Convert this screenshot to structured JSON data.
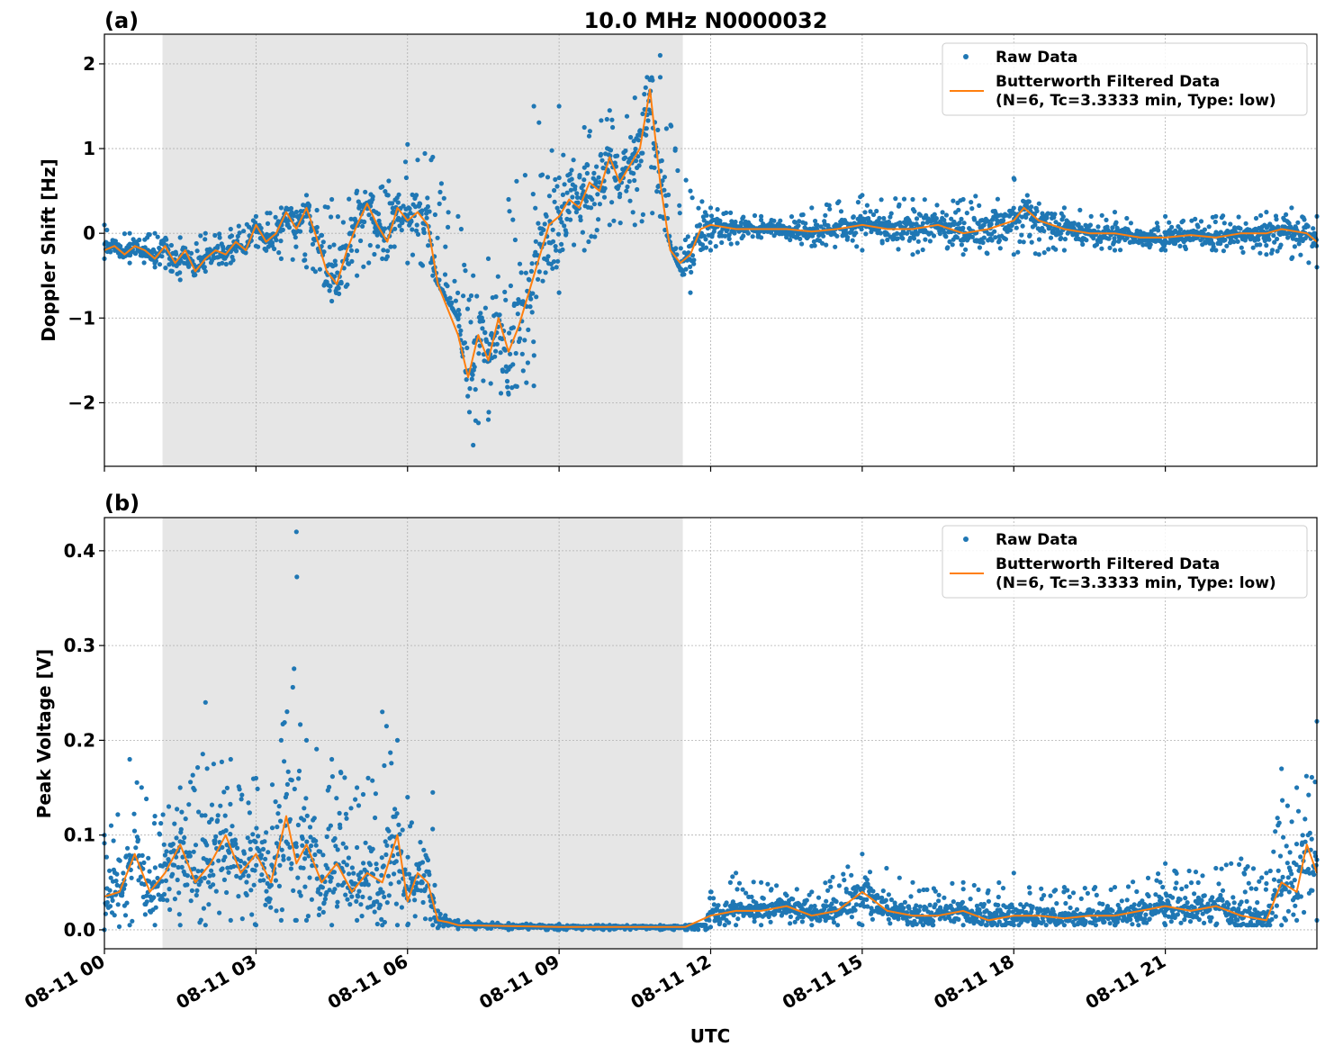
{
  "figure": {
    "title": "10.0 MHz N0000032",
    "xlabel": "UTC"
  },
  "colors": {
    "raw": "#1f77b4",
    "filtered": "#ff7f0e",
    "night_shade": "#e6e6e6",
    "grid": "#b0b0b0"
  },
  "legend": {
    "raw": "Raw Data",
    "filtered_line1": "Butterworth Filtered Data",
    "filtered_line2": "(N=6, Tc=3.3333 min, Type: low)"
  },
  "chart_data": [
    {
      "panel": "(a)",
      "type": "scatter",
      "title": "10.0 MHz N0000032",
      "ylabel": "Doppler Shift [Hz]",
      "xlabel": "UTC",
      "x_unit": "hours since 08-11 00:00 UTC",
      "xlim": [
        0,
        24
      ],
      "ylim": [
        -2.75,
        2.35
      ],
      "xticks": [
        0,
        3,
        6,
        9,
        12,
        15,
        18,
        21
      ],
      "xtick_labels": [
        "08-11 00",
        "08-11 03",
        "08-11 06",
        "08-11 09",
        "08-11 12",
        "08-11 15",
        "08-11 18",
        "08-11 21"
      ],
      "yticks": [
        -2,
        -1,
        0,
        1,
        2
      ],
      "ytick_labels": [
        "−2",
        "−1",
        "0",
        "1",
        "2"
      ],
      "shaded_x": [
        1.15,
        11.45
      ],
      "grid": true,
      "legend_position": "top-right",
      "series": [
        {
          "name": "Butterworth Filtered Data",
          "kind": "line",
          "x": [
            0,
            0.2,
            0.4,
            0.6,
            0.8,
            1.0,
            1.2,
            1.4,
            1.6,
            1.8,
            2.0,
            2.2,
            2.4,
            2.6,
            2.8,
            3.0,
            3.2,
            3.4,
            3.6,
            3.8,
            4.0,
            4.2,
            4.4,
            4.6,
            4.8,
            5.0,
            5.2,
            5.4,
            5.6,
            5.8,
            6.0,
            6.2,
            6.4,
            6.6,
            6.8,
            7.0,
            7.2,
            7.4,
            7.6,
            7.8,
            8.0,
            8.2,
            8.4,
            8.6,
            8.8,
            9.0,
            9.2,
            9.4,
            9.6,
            9.8,
            10.0,
            10.2,
            10.4,
            10.6,
            10.8,
            11.0,
            11.2,
            11.4,
            11.6,
            11.8,
            12.0,
            12.5,
            13.0,
            13.5,
            14.0,
            14.5,
            15.0,
            15.5,
            16.0,
            16.5,
            17.0,
            17.5,
            18.0,
            18.2,
            18.5,
            19.0,
            19.5,
            20.0,
            20.5,
            21.0,
            21.5,
            22.0,
            22.5,
            23.0,
            23.3,
            23.6,
            23.8,
            24.0
          ],
          "y": [
            -0.2,
            -0.15,
            -0.25,
            -0.15,
            -0.2,
            -0.3,
            -0.15,
            -0.35,
            -0.2,
            -0.45,
            -0.3,
            -0.2,
            -0.25,
            -0.1,
            -0.2,
            0.1,
            -0.1,
            0.0,
            0.25,
            0.05,
            0.3,
            -0.05,
            -0.45,
            -0.6,
            -0.2,
            0.1,
            0.35,
            0.1,
            -0.1,
            0.3,
            0.15,
            0.25,
            0.1,
            -0.6,
            -0.9,
            -1.2,
            -1.7,
            -1.2,
            -1.5,
            -1.0,
            -1.4,
            -1.1,
            -0.7,
            -0.3,
            0.1,
            0.2,
            0.4,
            0.3,
            0.6,
            0.5,
            0.9,
            0.6,
            0.8,
            1.0,
            1.7,
            0.6,
            -0.2,
            -0.35,
            -0.25,
            0.05,
            0.1,
            0.05,
            0.05,
            0.05,
            0.02,
            0.05,
            0.1,
            0.05,
            0.05,
            0.1,
            0.0,
            0.05,
            0.15,
            0.3,
            0.15,
            0.05,
            0.0,
            0.0,
            -0.05,
            -0.05,
            -0.02,
            -0.05,
            0.0,
            0.0,
            0.05,
            0.02,
            0.0,
            -0.1
          ]
        },
        {
          "name": "Raw Data",
          "kind": "scatter_envelope",
          "x": [
            0,
            0.5,
            1.0,
            1.5,
            2.0,
            2.5,
            3.0,
            3.5,
            4.0,
            4.5,
            5.0,
            5.5,
            6.0,
            6.5,
            7.0,
            7.3,
            7.6,
            8.0,
            8.5,
            9.0,
            9.5,
            10.0,
            10.5,
            11.0,
            11.3,
            11.6,
            12.0,
            13.0,
            14.0,
            15.0,
            16.0,
            17.0,
            18.0,
            18.5,
            19.0,
            20.0,
            21.0,
            22.0,
            23.0,
            23.5,
            24.0
          ],
          "y_low": [
            -0.3,
            -0.35,
            -0.4,
            -0.55,
            -0.45,
            -0.35,
            -0.15,
            -0.3,
            -0.4,
            -0.8,
            -0.5,
            -0.3,
            -0.35,
            -0.5,
            -1.0,
            -2.5,
            -2.2,
            -1.9,
            -1.8,
            -0.7,
            -0.2,
            0.1,
            0.1,
            0.2,
            -0.3,
            -0.7,
            -0.2,
            -0.05,
            -0.15,
            -0.2,
            -0.25,
            -0.25,
            -0.25,
            -0.25,
            -0.2,
            -0.2,
            -0.2,
            -0.2,
            -0.25,
            -0.3,
            -0.4
          ],
          "y_high": [
            0.1,
            0.0,
            0.0,
            -0.05,
            0.0,
            0.05,
            0.2,
            0.3,
            0.45,
            0.4,
            0.5,
            0.55,
            1.05,
            0.9,
            0.2,
            -0.5,
            -0.3,
            0.4,
            1.5,
            1.5,
            1.25,
            1.45,
            1.6,
            2.1,
            1.0,
            0.5,
            0.3,
            0.2,
            0.3,
            0.45,
            0.4,
            0.4,
            0.65,
            0.35,
            0.3,
            0.25,
            0.2,
            0.2,
            0.25,
            0.3,
            0.2
          ]
        }
      ]
    },
    {
      "panel": "(b)",
      "type": "scatter",
      "ylabel": "Peak Voltage [V]",
      "xlabel": "UTC",
      "x_unit": "hours since 08-11 00:00 UTC",
      "xlim": [
        0,
        24
      ],
      "ylim": [
        -0.02,
        0.435
      ],
      "xticks": [
        0,
        3,
        6,
        9,
        12,
        15,
        18,
        21
      ],
      "xtick_labels": [
        "08-11 00",
        "08-11 03",
        "08-11 06",
        "08-11 09",
        "08-11 12",
        "08-11 15",
        "08-11 18",
        "08-11 21"
      ],
      "yticks": [
        0.0,
        0.1,
        0.2,
        0.3,
        0.4
      ],
      "ytick_labels": [
        "0.0",
        "0.1",
        "0.2",
        "0.3",
        "0.4"
      ],
      "shaded_x": [
        1.15,
        11.45
      ],
      "grid": true,
      "legend_position": "top-right",
      "series": [
        {
          "name": "Butterworth Filtered Data",
          "kind": "line",
          "x": [
            0,
            0.3,
            0.6,
            0.9,
            1.2,
            1.5,
            1.8,
            2.1,
            2.4,
            2.7,
            3.0,
            3.3,
            3.6,
            3.8,
            4.0,
            4.3,
            4.6,
            4.9,
            5.2,
            5.5,
            5.8,
            6.0,
            6.2,
            6.4,
            6.6,
            6.8,
            7.0,
            8.0,
            9.0,
            10.0,
            11.0,
            11.5,
            12.0,
            12.5,
            13.0,
            13.5,
            14.0,
            14.5,
            15.0,
            15.5,
            16.0,
            16.5,
            17.0,
            17.5,
            18.0,
            18.5,
            19.0,
            19.5,
            20.0,
            20.5,
            21.0,
            21.5,
            22.0,
            22.5,
            23.0,
            23.3,
            23.6,
            23.8,
            24.0
          ],
          "y": [
            0.035,
            0.04,
            0.08,
            0.04,
            0.06,
            0.09,
            0.05,
            0.07,
            0.1,
            0.06,
            0.08,
            0.05,
            0.12,
            0.07,
            0.09,
            0.05,
            0.07,
            0.04,
            0.06,
            0.05,
            0.1,
            0.03,
            0.06,
            0.05,
            0.01,
            0.008,
            0.005,
            0.004,
            0.003,
            0.003,
            0.003,
            0.003,
            0.015,
            0.02,
            0.02,
            0.025,
            0.015,
            0.02,
            0.04,
            0.02,
            0.015,
            0.015,
            0.02,
            0.01,
            0.015,
            0.015,
            0.012,
            0.015,
            0.015,
            0.02,
            0.025,
            0.02,
            0.025,
            0.015,
            0.01,
            0.05,
            0.04,
            0.09,
            0.06
          ]
        },
        {
          "name": "Raw Data",
          "kind": "scatter_envelope",
          "x": [
            0,
            0.5,
            1.0,
            1.5,
            2.0,
            2.5,
            3.0,
            3.5,
            3.8,
            4.0,
            4.5,
            5.0,
            5.5,
            5.8,
            6.0,
            6.5,
            6.6,
            7.0,
            8.0,
            9.0,
            10.0,
            11.0,
            11.5,
            11.9,
            12.0,
            12.5,
            13.0,
            14.0,
            15.0,
            16.0,
            17.0,
            18.0,
            19.0,
            20.0,
            21.0,
            22.0,
            22.5,
            23.0,
            23.3,
            23.6,
            24.0
          ],
          "y_low": [
            0.0,
            0.005,
            0.005,
            0.005,
            0.005,
            0.01,
            0.005,
            0.01,
            0.01,
            0.01,
            0.005,
            0.01,
            0.005,
            0.005,
            0.005,
            0.005,
            0.002,
            0.001,
            0.0,
            0.0,
            0.0,
            0.0,
            0.0,
            0.0,
            0.003,
            0.005,
            0.005,
            0.005,
            0.005,
            0.005,
            0.005,
            0.005,
            0.005,
            0.005,
            0.005,
            0.005,
            0.005,
            0.005,
            0.005,
            0.01,
            0.01
          ],
          "y_high": [
            0.1,
            0.18,
            0.12,
            0.15,
            0.24,
            0.18,
            0.16,
            0.2,
            0.42,
            0.2,
            0.18,
            0.15,
            0.23,
            0.2,
            0.14,
            0.145,
            0.02,
            0.01,
            0.007,
            0.006,
            0.005,
            0.005,
            0.005,
            0.005,
            0.04,
            0.06,
            0.05,
            0.04,
            0.08,
            0.05,
            0.05,
            0.06,
            0.045,
            0.045,
            0.07,
            0.065,
            0.075,
            0.06,
            0.17,
            0.15,
            0.22
          ]
        }
      ]
    }
  ]
}
